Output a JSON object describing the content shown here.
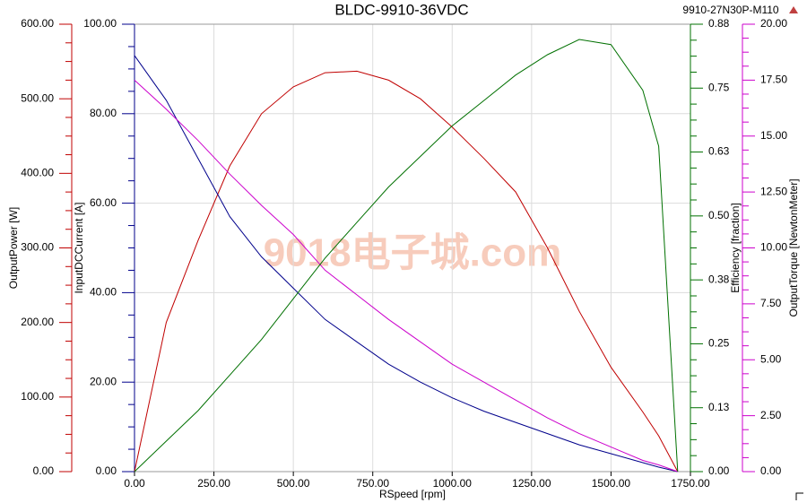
{
  "chart_data": {
    "type": "line",
    "title": "BLDC-9910-36VDC",
    "subtitle": "9910-27N30P-M110",
    "watermark": "9018电子城.com",
    "xlabel": "RSpeed [rpm]",
    "ylabel": "InputDCCurrent [A]",
    "y2label": "OutputPower [W]",
    "y3label": "Efficiency [fraction]",
    "y4label": "OutputTorque [NewtonMeter]",
    "xlim": [
      0,
      1750
    ],
    "xticks": [
      {
        "value": 0,
        "label": "0.00"
      },
      {
        "value": 250,
        "label": "250.00"
      },
      {
        "value": 500,
        "label": "500.00"
      },
      {
        "value": 750,
        "label": "750.00"
      },
      {
        "value": 1000,
        "label": "1000.00"
      },
      {
        "value": 1250,
        "label": "1250.00"
      },
      {
        "value": 1500,
        "label": "1500.00"
      },
      {
        "value": 1750,
        "label": "1750.00"
      }
    ],
    "ylim": [
      0,
      100
    ],
    "yticks": [
      {
        "value": 0,
        "label": "0.00"
      },
      {
        "value": 20,
        "label": "20.00"
      },
      {
        "value": 40,
        "label": "40.00"
      },
      {
        "value": 60,
        "label": "60.00"
      },
      {
        "value": 80,
        "label": "80.00"
      },
      {
        "value": 100,
        "label": "100.00"
      }
    ],
    "y2lim": [
      0,
      600
    ],
    "y2ticks": [
      {
        "value": 0,
        "label": "0.00"
      },
      {
        "value": 100,
        "label": "100.00"
      },
      {
        "value": 200,
        "label": "200.00"
      },
      {
        "value": 300,
        "label": "300.00"
      },
      {
        "value": 400,
        "label": "400.00"
      },
      {
        "value": 500,
        "label": "500.00"
      },
      {
        "value": 600,
        "label": "600.00"
      }
    ],
    "y3lim": [
      0,
      0.88
    ],
    "y3ticks": [
      {
        "value": 0,
        "label": "0.00"
      },
      {
        "value": 0.1257,
        "label": "0.13"
      },
      {
        "value": 0.2514,
        "label": "0.25"
      },
      {
        "value": 0.3771,
        "label": "0.38"
      },
      {
        "value": 0.5029,
        "label": "0.50"
      },
      {
        "value": 0.6286,
        "label": "0.63"
      },
      {
        "value": 0.7543,
        "label": "0.75"
      },
      0.88
    ],
    "y4lim": [
      0,
      20
    ],
    "y4ticks": [
      {
        "value": 0,
        "label": "0.00"
      },
      {
        "value": 2.5,
        "label": "2.50"
      },
      {
        "value": 5,
        "label": "5.00"
      },
      {
        "value": 7.5,
        "label": "7.50"
      },
      {
        "value": 10,
        "label": "10.00"
      },
      {
        "value": 12.5,
        "label": "12.50"
      },
      {
        "value": 15,
        "label": "15.00"
      },
      {
        "value": 17.5,
        "label": "17.50"
      },
      {
        "value": 20,
        "label": "20.00"
      }
    ],
    "grid": true,
    "x": [
      0,
      100,
      200,
      300,
      400,
      500,
      600,
      700,
      800,
      900,
      1000,
      1100,
      1200,
      1300,
      1400,
      1500,
      1600,
      1650,
      1710
    ],
    "series": [
      {
        "axis": "y2",
        "color": "#c00000",
        "values": [
          0,
          200,
          310,
          410,
          480,
          516,
          535,
          537,
          525,
          500,
          462,
          420,
          375,
          300,
          215,
          140,
          80,
          48,
          0
        ]
      },
      {
        "axis": "y",
        "color": "#00008b",
        "values": [
          93,
          83,
          70,
          57,
          48,
          41,
          34,
          29,
          24,
          20,
          16.5,
          13.5,
          11,
          8.5,
          6,
          4,
          2,
          1,
          0
        ]
      },
      {
        "axis": "y4",
        "color": "#cc00cc",
        "values": [
          17.5,
          16.2,
          14.8,
          13.3,
          11.9,
          10.6,
          9.0,
          7.9,
          6.8,
          5.8,
          4.8,
          4.0,
          3.2,
          2.4,
          1.7,
          1.1,
          0.5,
          0.3,
          0
        ]
      },
      {
        "axis": "y3",
        "color": "#007000",
        "values": [
          0,
          0.06,
          0.12,
          0.19,
          0.26,
          0.34,
          0.42,
          0.49,
          0.56,
          0.62,
          0.68,
          0.73,
          0.78,
          0.82,
          0.85,
          0.84,
          0.75,
          0.64,
          0
        ]
      }
    ]
  }
}
